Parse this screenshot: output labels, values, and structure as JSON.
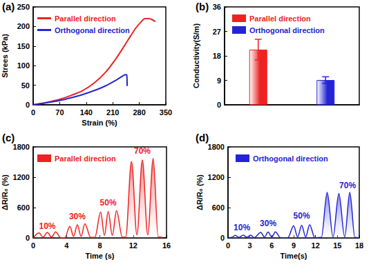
{
  "chart_data": [
    {
      "type": "line",
      "title": "(a)",
      "x_label": "Strain (%)",
      "y_label": "Strees (kPa)",
      "xlim": [
        0,
        350
      ],
      "xticks": [
        0,
        70,
        140,
        210,
        280,
        350
      ],
      "ylim": [
        0,
        250
      ],
      "yticks": [
        0,
        50,
        100,
        150,
        200,
        250
      ],
      "grid": false,
      "legend": "upper left",
      "series": [
        {
          "name": "Parallel direction",
          "color": "#ee2222",
          "x": [
            0,
            20,
            40,
            70,
            100,
            130,
            160,
            190,
            220,
            250,
            270,
            285,
            295,
            305,
            315,
            322
          ],
          "values": [
            0,
            3,
            7,
            14,
            24,
            36,
            55,
            82,
            120,
            165,
            195,
            212,
            220,
            220,
            217,
            212
          ]
        },
        {
          "name": "Orthogonal direction",
          "color": "#2424d6",
          "x": [
            0,
            20,
            40,
            70,
            100,
            130,
            160,
            190,
            215,
            232,
            240,
            245,
            247,
            248
          ],
          "values": [
            0,
            3,
            6,
            11,
            18,
            26,
            36,
            48,
            61,
            71,
            76,
            77,
            76,
            48
          ]
        }
      ]
    },
    {
      "type": "bar",
      "title": "(b)",
      "y_label": "Conductivity(S/m)",
      "categories": [
        null,
        null
      ],
      "ylim": [
        0,
        36
      ],
      "yticks": [
        0,
        9,
        18,
        27,
        36
      ],
      "grid": false,
      "legend": "upper left",
      "tick_labels": "y",
      "series": [
        {
          "name": "Parallel direction",
          "color": "#ee2222",
          "values": [
            20.3,
            null
          ],
          "errors": [
            3.8,
            null
          ]
        },
        {
          "name": "Orthogonal direction",
          "color": "#2424d6",
          "values": [
            null,
            9.1
          ],
          "errors": [
            null,
            1.2
          ]
        }
      ]
    },
    {
      "type": "area",
      "title": "(c)",
      "x_label": "Time (s)",
      "y_label": "ΔR/R₀ (%)",
      "xlim": [
        0,
        16
      ],
      "xticks": [
        0,
        4,
        8,
        12,
        16
      ],
      "ylim": [
        0,
        1800
      ],
      "yticks": [
        0,
        600,
        1200,
        1800
      ],
      "grid": false,
      "legend": "upper left",
      "annotations": [
        {
          "text": "10%",
          "x": 1.7,
          "y": 230
        },
        {
          "text": "30%",
          "x": 5.3,
          "y": 420
        },
        {
          "text": "50%",
          "x": 9.0,
          "y": 700
        },
        {
          "text": "70%",
          "x": 13.1,
          "y": 1720
        }
      ],
      "series": [
        {
          "name": "Parallel direction",
          "color": "#ee2222",
          "x": [
            0,
            0.7,
            1.2,
            1.7,
            2.2,
            2.7,
            3.3,
            3.8,
            4.4,
            4.85,
            5.3,
            5.75,
            6.2,
            6.9,
            7.4,
            8.1,
            8.55,
            9.0,
            9.5,
            10.0,
            10.7,
            11.1,
            11.8,
            12.45,
            13.1,
            13.75,
            14.4,
            15.0,
            15.5
          ],
          "values": [
            0,
            100,
            15,
            110,
            15,
            120,
            5,
            5,
            230,
            30,
            260,
            30,
            280,
            10,
            10,
            510,
            50,
            520,
            50,
            540,
            15,
            15,
            1510,
            60,
            1540,
            60,
            1570,
            20,
            10
          ]
        }
      ]
    },
    {
      "type": "area",
      "title": "(d)",
      "x_label": "Time(s)",
      "y_label": "ΔR/R₀ (%)",
      "xlim": [
        0,
        18
      ],
      "xticks": [
        0,
        3,
        6,
        9,
        12,
        15,
        18
      ],
      "ylim": [
        0,
        1800
      ],
      "yticks": [
        0,
        600,
        1200,
        1800
      ],
      "grid": false,
      "legend": "upper left",
      "annotations": [
        {
          "text": "10%",
          "x": 1.9,
          "y": 200
        },
        {
          "text": "30%",
          "x": 5.5,
          "y": 280
        },
        {
          "text": "50%",
          "x": 10.1,
          "y": 430
        },
        {
          "text": "70%",
          "x": 16.4,
          "y": 1030
        }
      ],
      "series": [
        {
          "name": "Orthogonal direction",
          "color": "#2424d6",
          "x": [
            0,
            0.5,
            1.0,
            1.5,
            2.1,
            2.6,
            3.1,
            3.6,
            4.5,
            5.0,
            5.5,
            6.0,
            6.5,
            7.2,
            8.2,
            9.0,
            9.55,
            10.1,
            10.65,
            11.2,
            11.9,
            12.8,
            13.6,
            14.4,
            15.2,
            16.0,
            16.7,
            17.4,
            18
          ],
          "values": [
            0,
            10,
            50,
            10,
            55,
            10,
            55,
            5,
            110,
            15,
            115,
            15,
            120,
            5,
            5,
            240,
            20,
            250,
            20,
            260,
            5,
            10,
            900,
            20,
            880,
            20,
            900,
            10,
            5
          ]
        }
      ]
    }
  ]
}
